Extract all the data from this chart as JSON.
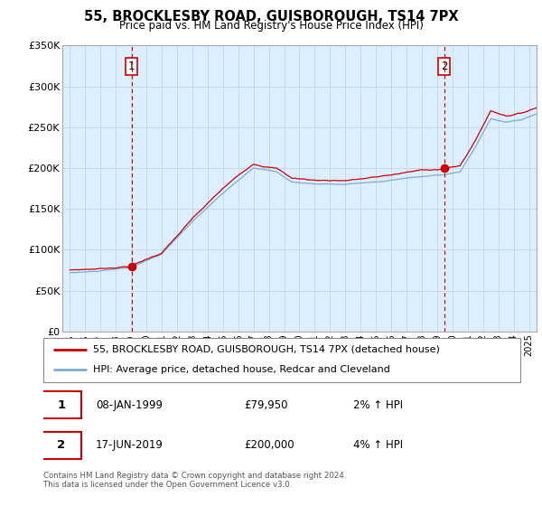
{
  "title": "55, BROCKLESBY ROAD, GUISBOROUGH, TS14 7PX",
  "subtitle": "Price paid vs. HM Land Registry's House Price Index (HPI)",
  "ylabel_ticks": [
    "£0",
    "£50K",
    "£100K",
    "£150K",
    "£200K",
    "£250K",
    "£300K",
    "£350K"
  ],
  "ylim": [
    0,
    350000
  ],
  "xlim_start": 1994.5,
  "xlim_end": 2025.5,
  "xticks": [
    1995,
    1996,
    1997,
    1998,
    1999,
    2000,
    2001,
    2002,
    2003,
    2004,
    2005,
    2006,
    2007,
    2008,
    2009,
    2010,
    2011,
    2012,
    2013,
    2014,
    2015,
    2016,
    2017,
    2018,
    2019,
    2020,
    2021,
    2022,
    2023,
    2024,
    2025
  ],
  "sale1_date": 1999.03,
  "sale1_price": 79950,
  "sale1_label": "1",
  "sale2_date": 2019.46,
  "sale2_price": 200000,
  "sale2_label": "2",
  "hpi_color": "#7aadd4",
  "price_color": "#cc0000",
  "vline_color": "#cc0000",
  "bg_fill_color": "#ddeeff",
  "legend_line1": "55, BROCKLESBY ROAD, GUISBOROUGH, TS14 7PX (detached house)",
  "legend_line2": "HPI: Average price, detached house, Redcar and Cleveland",
  "table_row1": [
    "1",
    "08-JAN-1999",
    "£79,950",
    "2% ↑ HPI"
  ],
  "table_row2": [
    "2",
    "17-JUN-2019",
    "£200,000",
    "4% ↑ HPI"
  ],
  "footer": "Contains HM Land Registry data © Crown copyright and database right 2024.\nThis data is licensed under the Open Government Licence v3.0.",
  "background_color": "#ffffff",
  "grid_color": "#c8d8e8"
}
